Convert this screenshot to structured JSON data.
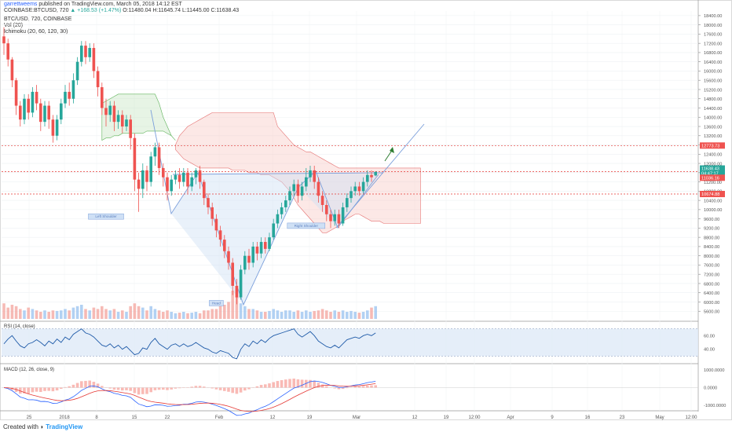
{
  "header": {
    "user": "garrettweems",
    "published": "published on TradingView.com, March 05, 2018 14:12 EST",
    "symbol": "COINBASE:BTCUSD, 720",
    "change": "▲ +168.53 (+1.47%)",
    "o": "O:11480.04",
    "h": "H:11645.74",
    "l": "L:11445.00",
    "c": "C:11638.43",
    "legend_title": "BTC/USD, 720, COINBASE",
    "legend_vol": "Vol (20)",
    "legend_ichimoku": "Ichimoku (20, 60, 120, 30)"
  },
  "footer": {
    "created": "Created with",
    "brand": "TradingView"
  },
  "colors": {
    "up": "#26a69a",
    "down": "#ef5350",
    "rsi": "#1e5aa8",
    "band": "#dfeaf8",
    "hline": "#e53935",
    "trend": "#7b9fdb"
  },
  "chart_data": {
    "type": "candlestick",
    "price_axis": {
      "min": 5200,
      "max": 18600,
      "ticks": [
        5600,
        6000,
        6400,
        6800,
        7200,
        7600,
        8000,
        8400,
        8800,
        9200,
        9600,
        10000,
        10400,
        10800,
        11200,
        11600,
        12000,
        12400,
        12800,
        13200,
        13600,
        14000,
        14400,
        14800,
        15200,
        15600,
        16000,
        16400,
        16800,
        17200,
        17600,
        18000,
        18400
      ]
    },
    "x_labels": [
      "25",
      "2018",
      "8",
      "15",
      "22",
      "Feb",
      "12",
      "19",
      "Mar",
      "12",
      "19",
      "12:00",
      "Apr",
      "9",
      "16",
      "23",
      "May",
      "12:00"
    ],
    "price_labels": [
      {
        "value": "12773.73",
        "price": 12773.73,
        "color": "#ef5350"
      },
      {
        "value": "11638.43",
        "price": 11780,
        "color": "#26a69a"
      },
      {
        "value": "04:47:17",
        "price": 11580,
        "color": "#26a69a"
      },
      {
        "value": "11036.16",
        "price": 11380,
        "color": "#ef5350"
      },
      {
        "value": "10674.88",
        "price": 10674.88,
        "color": "#ef5350"
      }
    ],
    "horizontal_lines": [
      12773.73,
      11650,
      10674.88
    ],
    "pattern_labels": [
      {
        "text": "Left Shoulder",
        "x": 25,
        "price": 9650
      },
      {
        "text": "Head",
        "x": 52,
        "price": 5900
      },
      {
        "text": "Right Shoulder",
        "x": 74,
        "price": 9250
      }
    ],
    "candles": [
      [
        17500,
        17200,
        17900,
        16700
      ],
      [
        17200,
        16500,
        17400,
        16200
      ],
      [
        16500,
        15600,
        16600,
        15300
      ],
      [
        15600,
        14500,
        15700,
        14100
      ],
      [
        14500,
        13900,
        14700,
        13600
      ],
      [
        13900,
        14800,
        15000,
        13700
      ],
      [
        14800,
        14200,
        15000,
        13900
      ],
      [
        14200,
        15100,
        15300,
        14000
      ],
      [
        15100,
        14600,
        15400,
        14300
      ],
      [
        14600,
        13800,
        14800,
        13400
      ],
      [
        13800,
        14500,
        14700,
        13600
      ],
      [
        14500,
        13900,
        14700,
        13500
      ],
      [
        13900,
        13200,
        14100,
        12900
      ],
      [
        13200,
        13900,
        14100,
        13000
      ],
      [
        13900,
        14600,
        14800,
        13700
      ],
      [
        14600,
        15100,
        15400,
        14400
      ],
      [
        15100,
        14800,
        15500,
        14500
      ],
      [
        14800,
        15600,
        15900,
        14600
      ],
      [
        15600,
        16400,
        16600,
        15400
      ],
      [
        16400,
        17100,
        17300,
        16200
      ],
      [
        17100,
        16600,
        17300,
        16300
      ],
      [
        16600,
        17000,
        17200,
        16400
      ],
      [
        17000,
        16000,
        17200,
        15700
      ],
      [
        16000,
        15300,
        16200,
        14900
      ],
      [
        15300,
        14400,
        15500,
        14100
      ],
      [
        14400,
        14100,
        14800,
        13600
      ],
      [
        14100,
        14500,
        14700,
        13800
      ],
      [
        14500,
        13800,
        14700,
        13400
      ],
      [
        13800,
        14100,
        14300,
        13500
      ],
      [
        14100,
        13600,
        14300,
        13300
      ],
      [
        13600,
        13900,
        14100,
        13400
      ],
      [
        13900,
        13100,
        14100,
        12600
      ],
      [
        13100,
        11300,
        13300,
        10800
      ],
      [
        11300,
        10900,
        11600,
        9900
      ],
      [
        10900,
        11700,
        12000,
        10500
      ],
      [
        11700,
        11200,
        11900,
        10800
      ],
      [
        11200,
        12300,
        12500,
        11000
      ],
      [
        12300,
        12700,
        12900,
        11900
      ],
      [
        12700,
        11800,
        12900,
        11500
      ],
      [
        11800,
        11400,
        12000,
        11000
      ],
      [
        11400,
        10800,
        11600,
        10400
      ],
      [
        10800,
        11300,
        11500,
        10600
      ],
      [
        11300,
        11500,
        11700,
        11100
      ],
      [
        11500,
        11200,
        11800,
        10900
      ],
      [
        11200,
        11600,
        11800,
        11000
      ],
      [
        11600,
        11000,
        11800,
        10700
      ],
      [
        11000,
        11400,
        11600,
        10800
      ],
      [
        11400,
        11700,
        11800,
        11100
      ],
      [
        11700,
        11200,
        11900,
        10900
      ],
      [
        11200,
        10500,
        11300,
        10200
      ],
      [
        10500,
        10100,
        10700,
        9800
      ],
      [
        10100,
        9600,
        10300,
        9300
      ],
      [
        9600,
        9100,
        9800,
        8800
      ],
      [
        9100,
        8700,
        9300,
        8400
      ],
      [
        8700,
        8200,
        8900,
        7900
      ],
      [
        8200,
        7700,
        8400,
        7400
      ],
      [
        7700,
        6700,
        7900,
        6300
      ],
      [
        6700,
        6200,
        7000,
        5900
      ],
      [
        6200,
        7400,
        7600,
        6100
      ],
      [
        7400,
        8000,
        8200,
        7200
      ],
      [
        8000,
        7700,
        8300,
        7400
      ],
      [
        7700,
        8400,
        8600,
        7500
      ],
      [
        8400,
        8100,
        8600,
        7800
      ],
      [
        8100,
        8600,
        8800,
        7900
      ],
      [
        8600,
        8300,
        8800,
        8100
      ],
      [
        8300,
        8800,
        9000,
        8200
      ],
      [
        8800,
        9400,
        9600,
        8700
      ],
      [
        9400,
        9800,
        10000,
        9200
      ],
      [
        9800,
        10100,
        10300,
        9600
      ],
      [
        10100,
        10400,
        10600,
        9900
      ],
      [
        10400,
        10800,
        11000,
        10200
      ],
      [
        10800,
        11100,
        11300,
        10600
      ],
      [
        11100,
        10600,
        11300,
        10300
      ],
      [
        10600,
        11000,
        11200,
        10400
      ],
      [
        11000,
        11400,
        11800,
        10800
      ],
      [
        11400,
        11700,
        11900,
        11200
      ],
      [
        11700,
        11200,
        11900,
        10900
      ],
      [
        11200,
        10600,
        11400,
        10300
      ],
      [
        10600,
        10200,
        10800,
        9900
      ],
      [
        10200,
        9800,
        10400,
        9500
      ],
      [
        9800,
        9500,
        10000,
        9200
      ],
      [
        9500,
        9800,
        10000,
        9300
      ],
      [
        9800,
        9400,
        10000,
        9200
      ],
      [
        9400,
        10100,
        10300,
        9300
      ],
      [
        10100,
        10500,
        10700,
        9900
      ],
      [
        10500,
        10800,
        11000,
        10300
      ],
      [
        10800,
        11000,
        11200,
        10600
      ],
      [
        11000,
        10800,
        11200,
        10600
      ],
      [
        10800,
        11200,
        11400,
        10700
      ],
      [
        11200,
        11500,
        11700,
        11000
      ],
      [
        11500,
        11400,
        11700,
        11200
      ],
      [
        11480,
        11638,
        11646,
        11445
      ]
    ],
    "cloud_green": {
      "x_start": 24,
      "top": [
        14600,
        14700,
        14800,
        14900,
        15000,
        15000,
        15000,
        15000,
        15000,
        15000,
        15000,
        15000,
        15000,
        15000,
        14600,
        14000,
        13600,
        13200,
        13000
      ],
      "bottom": [
        13000,
        13100,
        13100,
        13200,
        13200,
        13300,
        13300,
        13300,
        13300,
        13300,
        13300,
        13400,
        13400,
        13400,
        13400,
        13400,
        13300,
        13200,
        13000
      ]
    },
    "cloud_red": {
      "x_start": 42,
      "top": [
        12800,
        13200,
        13400,
        13600,
        13700,
        13800,
        13900,
        14000,
        14100,
        14200,
        14200,
        14200,
        14200,
        14200,
        14200,
        14200,
        14200,
        14200,
        14200,
        14200,
        14200,
        14200,
        14200,
        14200,
        14200,
        13600,
        13400,
        13200,
        13000,
        12800,
        12700,
        12600,
        12500,
        12500,
        12400,
        12300,
        12200,
        12100,
        12000,
        11900,
        11800,
        11800,
        11800,
        11800,
        11800,
        11800,
        11800,
        11800,
        11800,
        11800,
        11800,
        11800,
        11800,
        11800,
        11800,
        11800,
        11800,
        11800,
        11800,
        11800,
        11800
      ],
      "bottom": [
        12600,
        12400,
        12200,
        12100,
        12000,
        11900,
        11800,
        11800,
        11800,
        11800,
        11800,
        11800,
        11800,
        11800,
        11700,
        11700,
        11700,
        11700,
        11600,
        11600,
        11600,
        11500,
        11500,
        11500,
        11400,
        11300,
        11200,
        11000,
        10800,
        10500,
        10200,
        10000,
        9800,
        9600,
        9400,
        9200,
        9000,
        9000,
        9100,
        9200,
        9300,
        9500,
        9600,
        9700,
        9800,
        9800,
        9700,
        9600,
        9500,
        9500,
        9500,
        9400,
        9400,
        9400,
        9400,
        9400,
        9400,
        9400,
        9400,
        9400,
        9400
      ]
    },
    "volume": [
      0.55,
      0.4,
      0.5,
      0.45,
      0.35,
      0.3,
      0.4,
      0.35,
      0.3,
      0.25,
      0.3,
      0.25,
      0.3,
      0.28,
      0.3,
      0.35,
      0.3,
      0.4,
      0.45,
      0.5,
      0.35,
      0.3,
      0.4,
      0.35,
      0.45,
      0.35,
      0.3,
      0.35,
      0.25,
      0.3,
      0.25,
      0.45,
      0.55,
      0.45,
      0.4,
      0.3,
      0.45,
      0.35,
      0.3,
      0.25,
      0.3,
      0.25,
      0.2,
      0.22,
      0.25,
      0.2,
      0.22,
      0.25,
      0.2,
      0.3,
      0.3,
      0.35,
      0.35,
      0.45,
      0.5,
      0.6,
      1.0,
      0.8,
      0.55,
      0.45,
      0.35,
      0.35,
      0.3,
      0.25,
      0.25,
      0.28,
      0.35,
      0.3,
      0.25,
      0.3,
      0.3,
      0.25,
      0.3,
      0.25,
      0.3,
      0.25,
      0.28,
      0.3,
      0.35,
      0.3,
      0.25,
      0.3,
      0.25,
      0.3,
      0.25,
      0.28,
      0.25,
      0.22,
      0.25,
      0.3,
      0.4,
      0.45
    ],
    "rsi": {
      "ticks": [
        40,
        60
      ],
      "band": [
        30,
        70
      ],
      "values": [
        48,
        55,
        60,
        52,
        45,
        42,
        48,
        50,
        54,
        50,
        45,
        52,
        48,
        55,
        50,
        58,
        54,
        62,
        66,
        70,
        64,
        62,
        58,
        52,
        46,
        44,
        48,
        42,
        46,
        40,
        44,
        38,
        32,
        34,
        42,
        40,
        50,
        56,
        48,
        44,
        40,
        46,
        48,
        44,
        48,
        44,
        46,
        50,
        46,
        42,
        40,
        36,
        34,
        38,
        36,
        34,
        28,
        26,
        40,
        48,
        44,
        52,
        48,
        54,
        50,
        56,
        60,
        62,
        64,
        66,
        68,
        70,
        62,
        58,
        62,
        66,
        60,
        52,
        48,
        44,
        42,
        46,
        42,
        48,
        54,
        56,
        58,
        56,
        60,
        62,
        60,
        64
      ]
    },
    "macd": {
      "ticks": [
        1000,
        0,
        -1000
      ],
      "labels": [
        "1000.0000",
        "0.0000",
        "-1000.0000"
      ]
    }
  }
}
